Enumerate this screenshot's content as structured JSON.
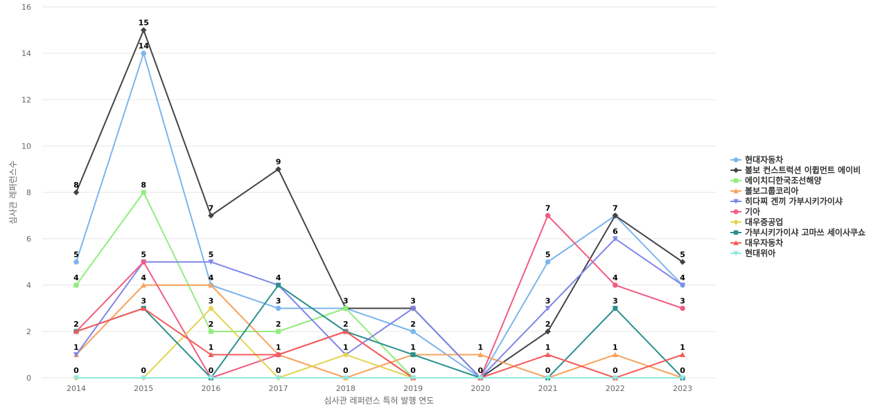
{
  "chart_data": {
    "type": "line",
    "x": [
      "2014",
      "2015",
      "2016",
      "2017",
      "2018",
      "2019",
      "2020",
      "2021",
      "2022",
      "2023"
    ],
    "xlabel": "심사관 레퍼런스 특허 발행 연도",
    "ylabel": "심사관 레퍼런스수",
    "ylim": [
      0,
      16
    ],
    "yticks": [
      0,
      2,
      4,
      6,
      8,
      10,
      12,
      14,
      16
    ],
    "grid": true,
    "legend_position": "right",
    "data_labels": true,
    "series": [
      {
        "name": "현대자동차",
        "color": "#7cb5ec",
        "marker": "circle",
        "values": [
          5,
          14,
          4,
          3,
          3,
          2,
          0,
          5,
          7,
          4
        ]
      },
      {
        "name": "볼보 컨스트럭션 이큅먼트 에이비",
        "color": "#434348",
        "marker": "diamond",
        "values": [
          8,
          15,
          7,
          9,
          3,
          3,
          0,
          2,
          7,
          5
        ]
      },
      {
        "name": "에이치디한국조선해양",
        "color": "#90ed7d",
        "marker": "square",
        "values": [
          4,
          8,
          2,
          2,
          3,
          0,
          0,
          0,
          0,
          0
        ]
      },
      {
        "name": "볼보그룹코리아",
        "color": "#f7a35c",
        "marker": "triangle",
        "values": [
          1,
          4,
          4,
          1,
          0,
          1,
          1,
          0,
          1,
          0
        ]
      },
      {
        "name": "히다찌 겐끼 가부시키가이샤",
        "color": "#8085e9",
        "marker": "triangle-down",
        "values": [
          1,
          5,
          5,
          4,
          1,
          3,
          0,
          3,
          6,
          4
        ]
      },
      {
        "name": "기아",
        "color": "#f15c80",
        "marker": "circle",
        "values": [
          2,
          5,
          0,
          1,
          2,
          0,
          0,
          7,
          4,
          3
        ]
      },
      {
        "name": "대우중공업",
        "color": "#e4d354",
        "marker": "diamond",
        "values": [
          0,
          0,
          3,
          0,
          1,
          0,
          0,
          0,
          0,
          0
        ]
      },
      {
        "name": "가부시키가이샤 고마쓰 세이사쿠쇼",
        "color": "#2b908f",
        "marker": "square",
        "values": [
          2,
          3,
          0,
          4,
          2,
          1,
          0,
          0,
          3,
          0
        ]
      },
      {
        "name": "대우자동차",
        "color": "#f45b5b",
        "marker": "triangle",
        "values": [
          2,
          3,
          1,
          1,
          2,
          0,
          0,
          1,
          0,
          1
        ]
      },
      {
        "name": "현대위아",
        "color": "#91e8e1",
        "marker": "triangle-down",
        "values": [
          0,
          0,
          0,
          0,
          0,
          0,
          0,
          0,
          0,
          0
        ]
      }
    ],
    "label_values": {
      "2014": [
        8,
        5,
        4,
        2,
        1,
        0
      ],
      "2015": [
        15,
        14,
        8,
        5,
        4,
        3,
        0
      ],
      "2016": [
        7,
        5,
        4,
        3,
        2,
        1,
        0
      ],
      "2017": [
        9,
        4,
        3,
        2,
        1,
        0
      ],
      "2018": [
        3,
        2,
        1,
        0
      ],
      "2019": [
        3,
        2,
        1,
        0
      ],
      "2020": [
        1,
        0
      ],
      "2021": [
        7,
        5,
        3,
        2,
        1,
        0
      ],
      "2022": [
        7,
        6,
        4,
        3,
        1,
        0
      ],
      "2023": [
        5,
        4,
        3,
        1,
        0
      ]
    }
  }
}
